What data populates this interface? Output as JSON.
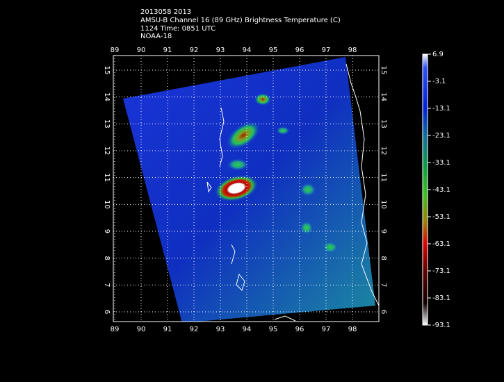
{
  "header": {
    "lines": [
      "2013058 2013",
      "AMSU-B Channel 16 (89 GHz) Brightness Temperature (C)",
      "1124 Time: 0851 UTC",
      "NOAA-18"
    ]
  },
  "map": {
    "lon_ticks": [
      89,
      90,
      91,
      92,
      93,
      94,
      95,
      96,
      97,
      98
    ],
    "lat_ticks": [
      6,
      7,
      8,
      9,
      10,
      11,
      12,
      13,
      14,
      15
    ]
  },
  "colorbar": {
    "lim": [
      6.9,
      -93.1
    ],
    "ticks": [
      6.9,
      -3.1,
      -13.1,
      -23.1,
      -33.1,
      -43.1,
      -53.1,
      -63.1,
      -73.1,
      -83.1,
      -93.1
    ]
  }
}
